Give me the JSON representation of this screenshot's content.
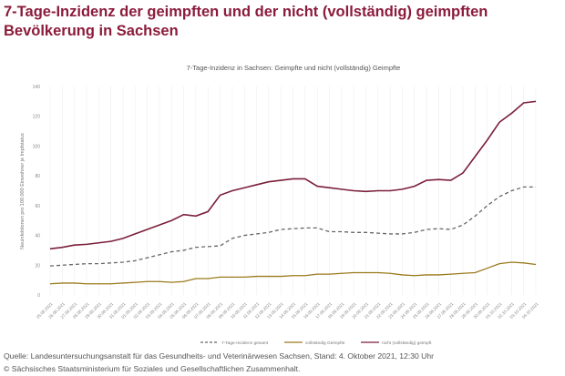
{
  "page_title": "7-Tage-Inzidenz der geimpften und der nicht (vollständig) geimpften Bevölkerung in Sachsen",
  "source_line": "Quelle: Landesuntersuchungsanstalt für das Gesundheits- und Veterinärwesen Sachsen, Stand: 4. Oktober 2021, 12:30 Uhr",
  "copyright_line": "© Sächsisches Staatsministerium für Soziales und Gesellschaftlichen Zusammenhalt.",
  "chart_data": {
    "type": "line",
    "title": "7-Tage-Inzidenz in Sachsen: Geimpfte und nicht (vollständig) Geimpfte",
    "xlabel": "",
    "ylabel": "Neuinfektionen pro 100.000 Einwohner je Impfstatus",
    "ylim": [
      0,
      140
    ],
    "yticks": [
      0,
      20,
      40,
      60,
      80,
      100,
      120,
      140
    ],
    "grid": "vertical",
    "legend": "bottom",
    "categories": [
      "25.08.2021",
      "26.08.2021",
      "27.08.2021",
      "28.08.2021",
      "29.08.2021",
      "30.08.2021",
      "31.08.2021",
      "01.09.2021",
      "02.09.2021",
      "03.09.2021",
      "04.09.2021",
      "05.09.2021",
      "06.09.2021",
      "07.09.2021",
      "08.09.2021",
      "09.09.2021",
      "10.09.2021",
      "11.09.2021",
      "12.09.2021",
      "13.09.2021",
      "14.09.2021",
      "15.09.2021",
      "16.09.2021",
      "17.09.2021",
      "18.09.2021",
      "19.09.2021",
      "20.09.2021",
      "21.09.2021",
      "22.09.2021",
      "23.09.2021",
      "24.09.2021",
      "25.09.2021",
      "26.09.2021",
      "27.09.2021",
      "28.09.2021",
      "29.09.2021",
      "30.09.2021",
      "01.10.2021",
      "02.10.2021",
      "03.10.2021",
      "04.10.2021"
    ],
    "series": [
      {
        "name": "7-Tage-Inzidenz gesamt",
        "color": "#666666",
        "dashed": true,
        "values": [
          19.5,
          20,
          20.5,
          21,
          21,
          21.5,
          22,
          23,
          25,
          27,
          29,
          30,
          32,
          32.5,
          33,
          38,
          40,
          41,
          42,
          44,
          44.5,
          45,
          45,
          42.5,
          42.5,
          42,
          42,
          41.5,
          41,
          41,
          42,
          44,
          44.5,
          44,
          47,
          53,
          60,
          66,
          70,
          72.5,
          72.5
        ]
      },
      {
        "name": "vollständig Geimpfte",
        "color": "#9a7a1c",
        "dashed": false,
        "values": [
          7.5,
          8,
          8,
          7.5,
          7.5,
          7.5,
          8,
          8.5,
          9,
          9,
          8.5,
          9,
          11,
          11,
          12,
          12,
          12,
          12.5,
          12.5,
          12.5,
          13,
          13,
          14,
          14,
          14.5,
          15,
          15,
          15,
          14.5,
          13.5,
          13,
          13.5,
          13.5,
          14,
          14.5,
          15,
          18,
          21,
          22,
          21.5,
          20.5
        ]
      },
      {
        "name": "nicht (vollständig) geimpft",
        "color": "#7b1f3a",
        "dashed": false,
        "values": [
          31,
          32,
          33.5,
          34,
          35,
          36,
          38,
          41,
          44,
          47,
          50,
          54,
          53,
          56,
          67,
          70,
          72,
          74,
          76,
          77,
          78,
          78,
          73,
          72,
          71,
          70,
          69.5,
          70,
          70,
          71,
          73,
          77,
          77.5,
          77,
          82,
          93,
          104,
          116,
          122,
          129,
          130
        ]
      }
    ]
  }
}
